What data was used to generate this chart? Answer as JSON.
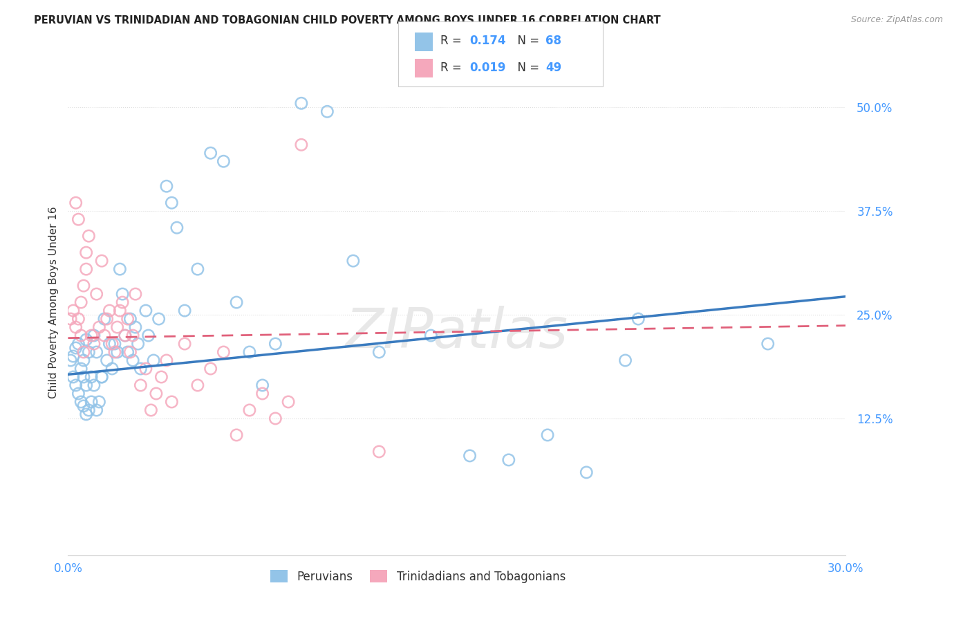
{
  "title": "PERUVIAN VS TRINIDADIAN AND TOBAGONIAN CHILD POVERTY AMONG BOYS UNDER 16 CORRELATION CHART",
  "source": "Source: ZipAtlas.com",
  "ylabel": "Child Poverty Among Boys Under 16",
  "ytick_values": [
    0.125,
    0.25,
    0.375,
    0.5
  ],
  "ytick_labels": [
    "12.5%",
    "25.0%",
    "37.5%",
    "50.0%"
  ],
  "xlim": [
    0.0,
    0.3
  ],
  "ylim": [
    -0.04,
    0.57
  ],
  "watermark": "ZIPatlas",
  "legend_blue_label": "Peruvians",
  "legend_pink_label": "Trinidadians and Tobagonians",
  "blue_color": "#93c4e8",
  "pink_color": "#f5a8bc",
  "line_blue_color": "#3a7bbf",
  "line_pink_color": "#e0607a",
  "blue_line_start_y": 0.178,
  "blue_line_end_y": 0.272,
  "pink_line_start_y": 0.222,
  "pink_line_end_y": 0.237,
  "background_color": "#ffffff",
  "grid_color": "#dddddd",
  "title_color": "#222222",
  "axis_color": "#4499ff",
  "blue_x": [
    0.001,
    0.002,
    0.002,
    0.003,
    0.003,
    0.004,
    0.004,
    0.005,
    0.005,
    0.006,
    0.006,
    0.006,
    0.007,
    0.007,
    0.007,
    0.008,
    0.008,
    0.009,
    0.009,
    0.01,
    0.01,
    0.011,
    0.011,
    0.012,
    0.013,
    0.013,
    0.014,
    0.015,
    0.016,
    0.017,
    0.018,
    0.019,
    0.02,
    0.021,
    0.022,
    0.023,
    0.024,
    0.025,
    0.026,
    0.027,
    0.028,
    0.03,
    0.031,
    0.033,
    0.035,
    0.038,
    0.04,
    0.042,
    0.045,
    0.05,
    0.055,
    0.06,
    0.065,
    0.07,
    0.075,
    0.08,
    0.09,
    0.1,
    0.11,
    0.12,
    0.14,
    0.155,
    0.17,
    0.185,
    0.2,
    0.215,
    0.22,
    0.27
  ],
  "blue_y": [
    0.195,
    0.175,
    0.2,
    0.165,
    0.21,
    0.155,
    0.215,
    0.145,
    0.185,
    0.14,
    0.195,
    0.175,
    0.13,
    0.22,
    0.165,
    0.135,
    0.205,
    0.145,
    0.175,
    0.225,
    0.165,
    0.135,
    0.205,
    0.145,
    0.175,
    0.175,
    0.245,
    0.195,
    0.215,
    0.185,
    0.215,
    0.205,
    0.305,
    0.275,
    0.225,
    0.205,
    0.245,
    0.195,
    0.235,
    0.215,
    0.185,
    0.255,
    0.225,
    0.195,
    0.245,
    0.405,
    0.385,
    0.355,
    0.255,
    0.305,
    0.445,
    0.435,
    0.265,
    0.205,
    0.165,
    0.215,
    0.505,
    0.495,
    0.315,
    0.205,
    0.225,
    0.08,
    0.075,
    0.105,
    0.06,
    0.195,
    0.245,
    0.215
  ],
  "pink_x": [
    0.001,
    0.002,
    0.003,
    0.003,
    0.004,
    0.004,
    0.005,
    0.005,
    0.006,
    0.006,
    0.007,
    0.007,
    0.008,
    0.009,
    0.01,
    0.011,
    0.012,
    0.013,
    0.014,
    0.015,
    0.016,
    0.017,
    0.018,
    0.019,
    0.02,
    0.021,
    0.022,
    0.023,
    0.024,
    0.025,
    0.026,
    0.028,
    0.03,
    0.032,
    0.034,
    0.036,
    0.038,
    0.04,
    0.045,
    0.05,
    0.055,
    0.06,
    0.065,
    0.07,
    0.075,
    0.08,
    0.085,
    0.09,
    0.12
  ],
  "pink_y": [
    0.245,
    0.255,
    0.235,
    0.385,
    0.365,
    0.245,
    0.225,
    0.265,
    0.285,
    0.205,
    0.305,
    0.325,
    0.345,
    0.225,
    0.215,
    0.275,
    0.235,
    0.315,
    0.225,
    0.245,
    0.255,
    0.215,
    0.205,
    0.235,
    0.255,
    0.265,
    0.225,
    0.245,
    0.205,
    0.225,
    0.275,
    0.165,
    0.185,
    0.135,
    0.155,
    0.175,
    0.195,
    0.145,
    0.215,
    0.165,
    0.185,
    0.205,
    0.105,
    0.135,
    0.155,
    0.125,
    0.145,
    0.455,
    0.085
  ]
}
